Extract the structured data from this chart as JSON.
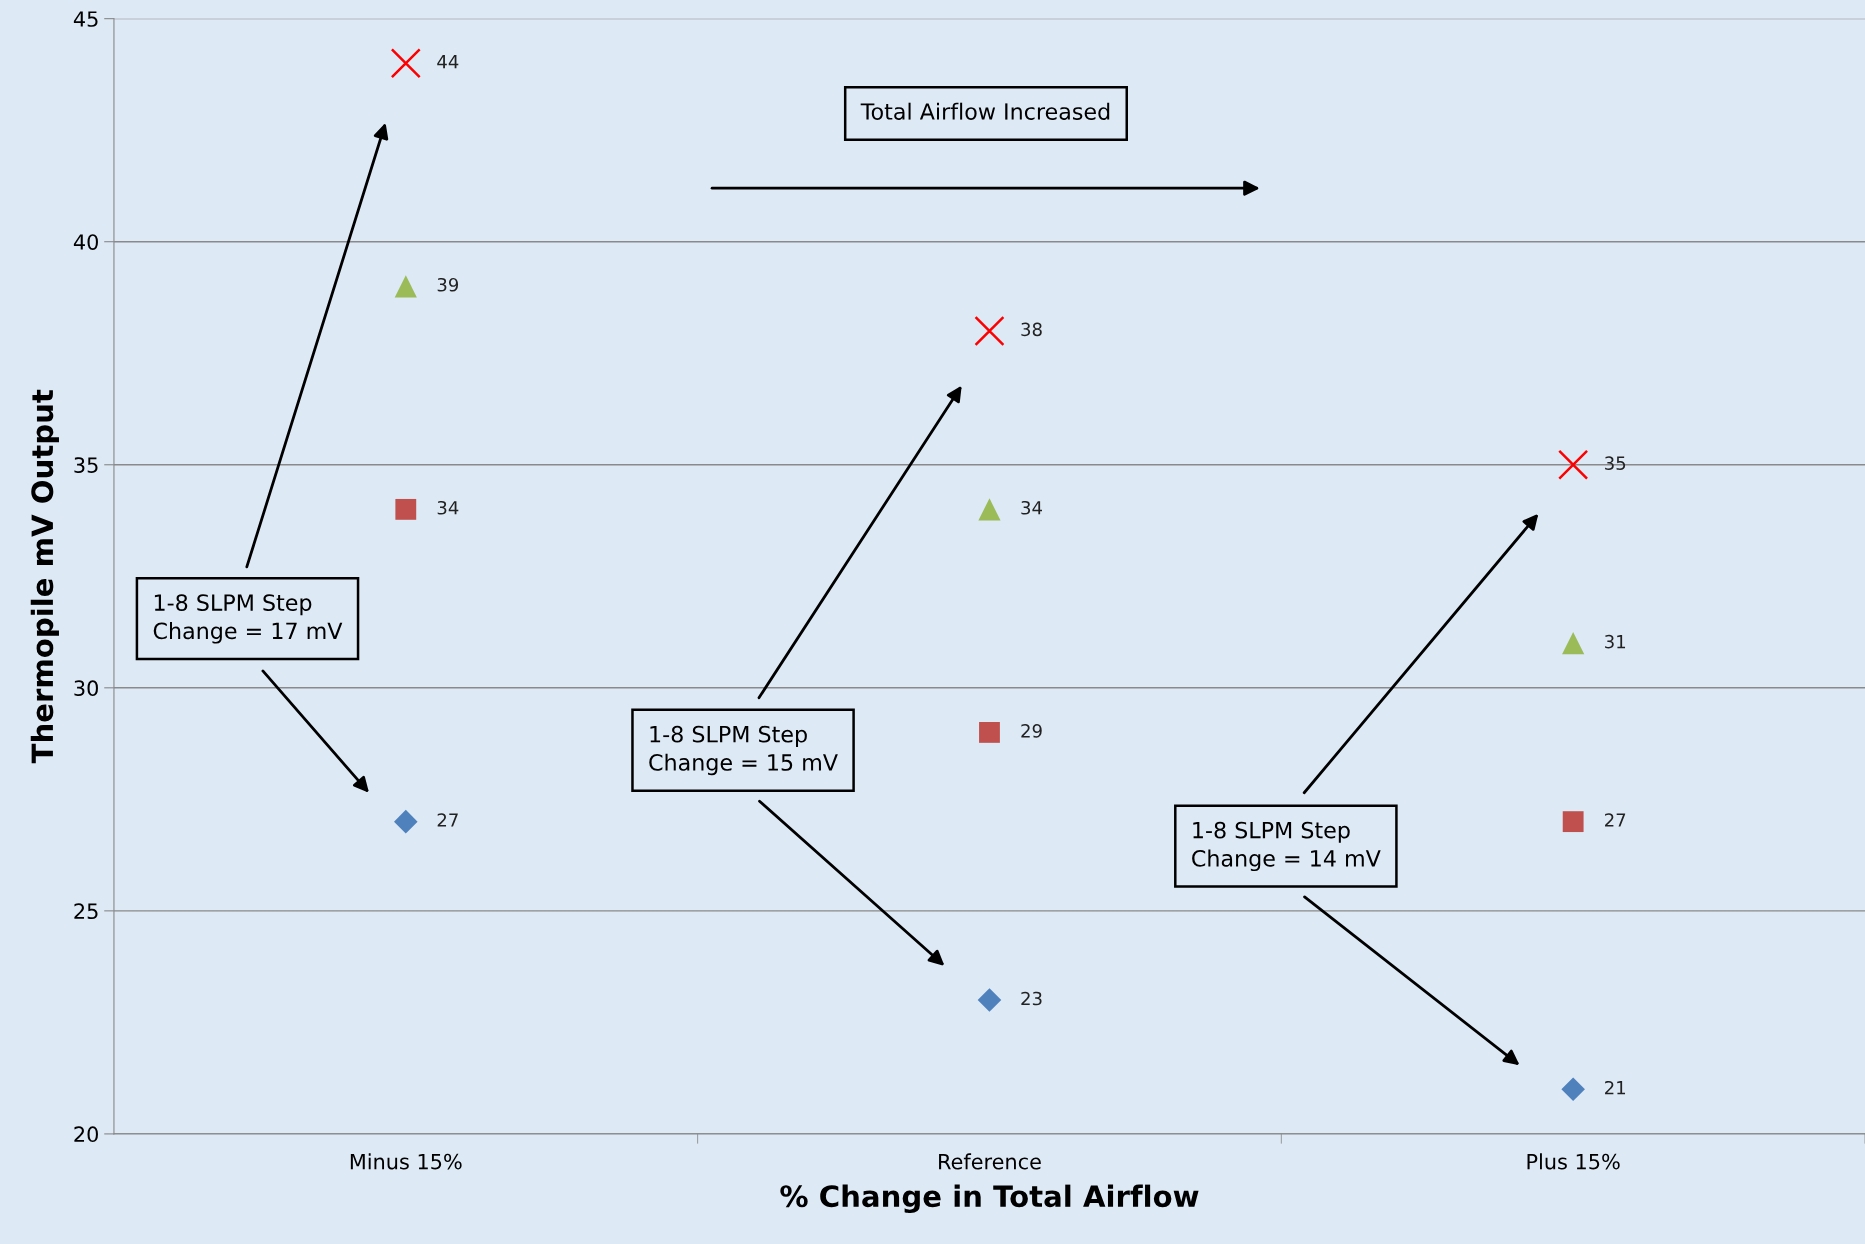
{
  "chart_data": {
    "type": "scatter",
    "xlabel": "% Change in Total Airflow",
    "ylabel": "Thermopile mV Output",
    "categories": [
      "Minus 15%",
      "Reference",
      "Plus 15%"
    ],
    "series": [
      {
        "color": "#4f81bd",
        "marker": "diamond",
        "values": [
          27,
          23,
          21
        ]
      },
      {
        "color": "#c0504d",
        "marker": "square",
        "values": [
          34,
          29,
          27
        ]
      },
      {
        "color": "#9bbb59",
        "marker": "triangle",
        "values": [
          39,
          34,
          31
        ]
      },
      {
        "color": "#ff0000",
        "marker": "cross",
        "values": [
          44,
          38,
          35
        ]
      }
    ],
    "ylim": [
      20,
      45
    ],
    "yticks": [
      20,
      25,
      30,
      35,
      40,
      45
    ],
    "grid": "y",
    "legend": false,
    "data_labels": true,
    "annotations": [
      "Total Airflow Increased",
      "1-8 SLPM Step\nChange = 17 mV",
      "1-8 SLPM Step\nChange = 15 mV",
      "1-8 SLPM Step\nChange = 14 mV"
    ]
  }
}
